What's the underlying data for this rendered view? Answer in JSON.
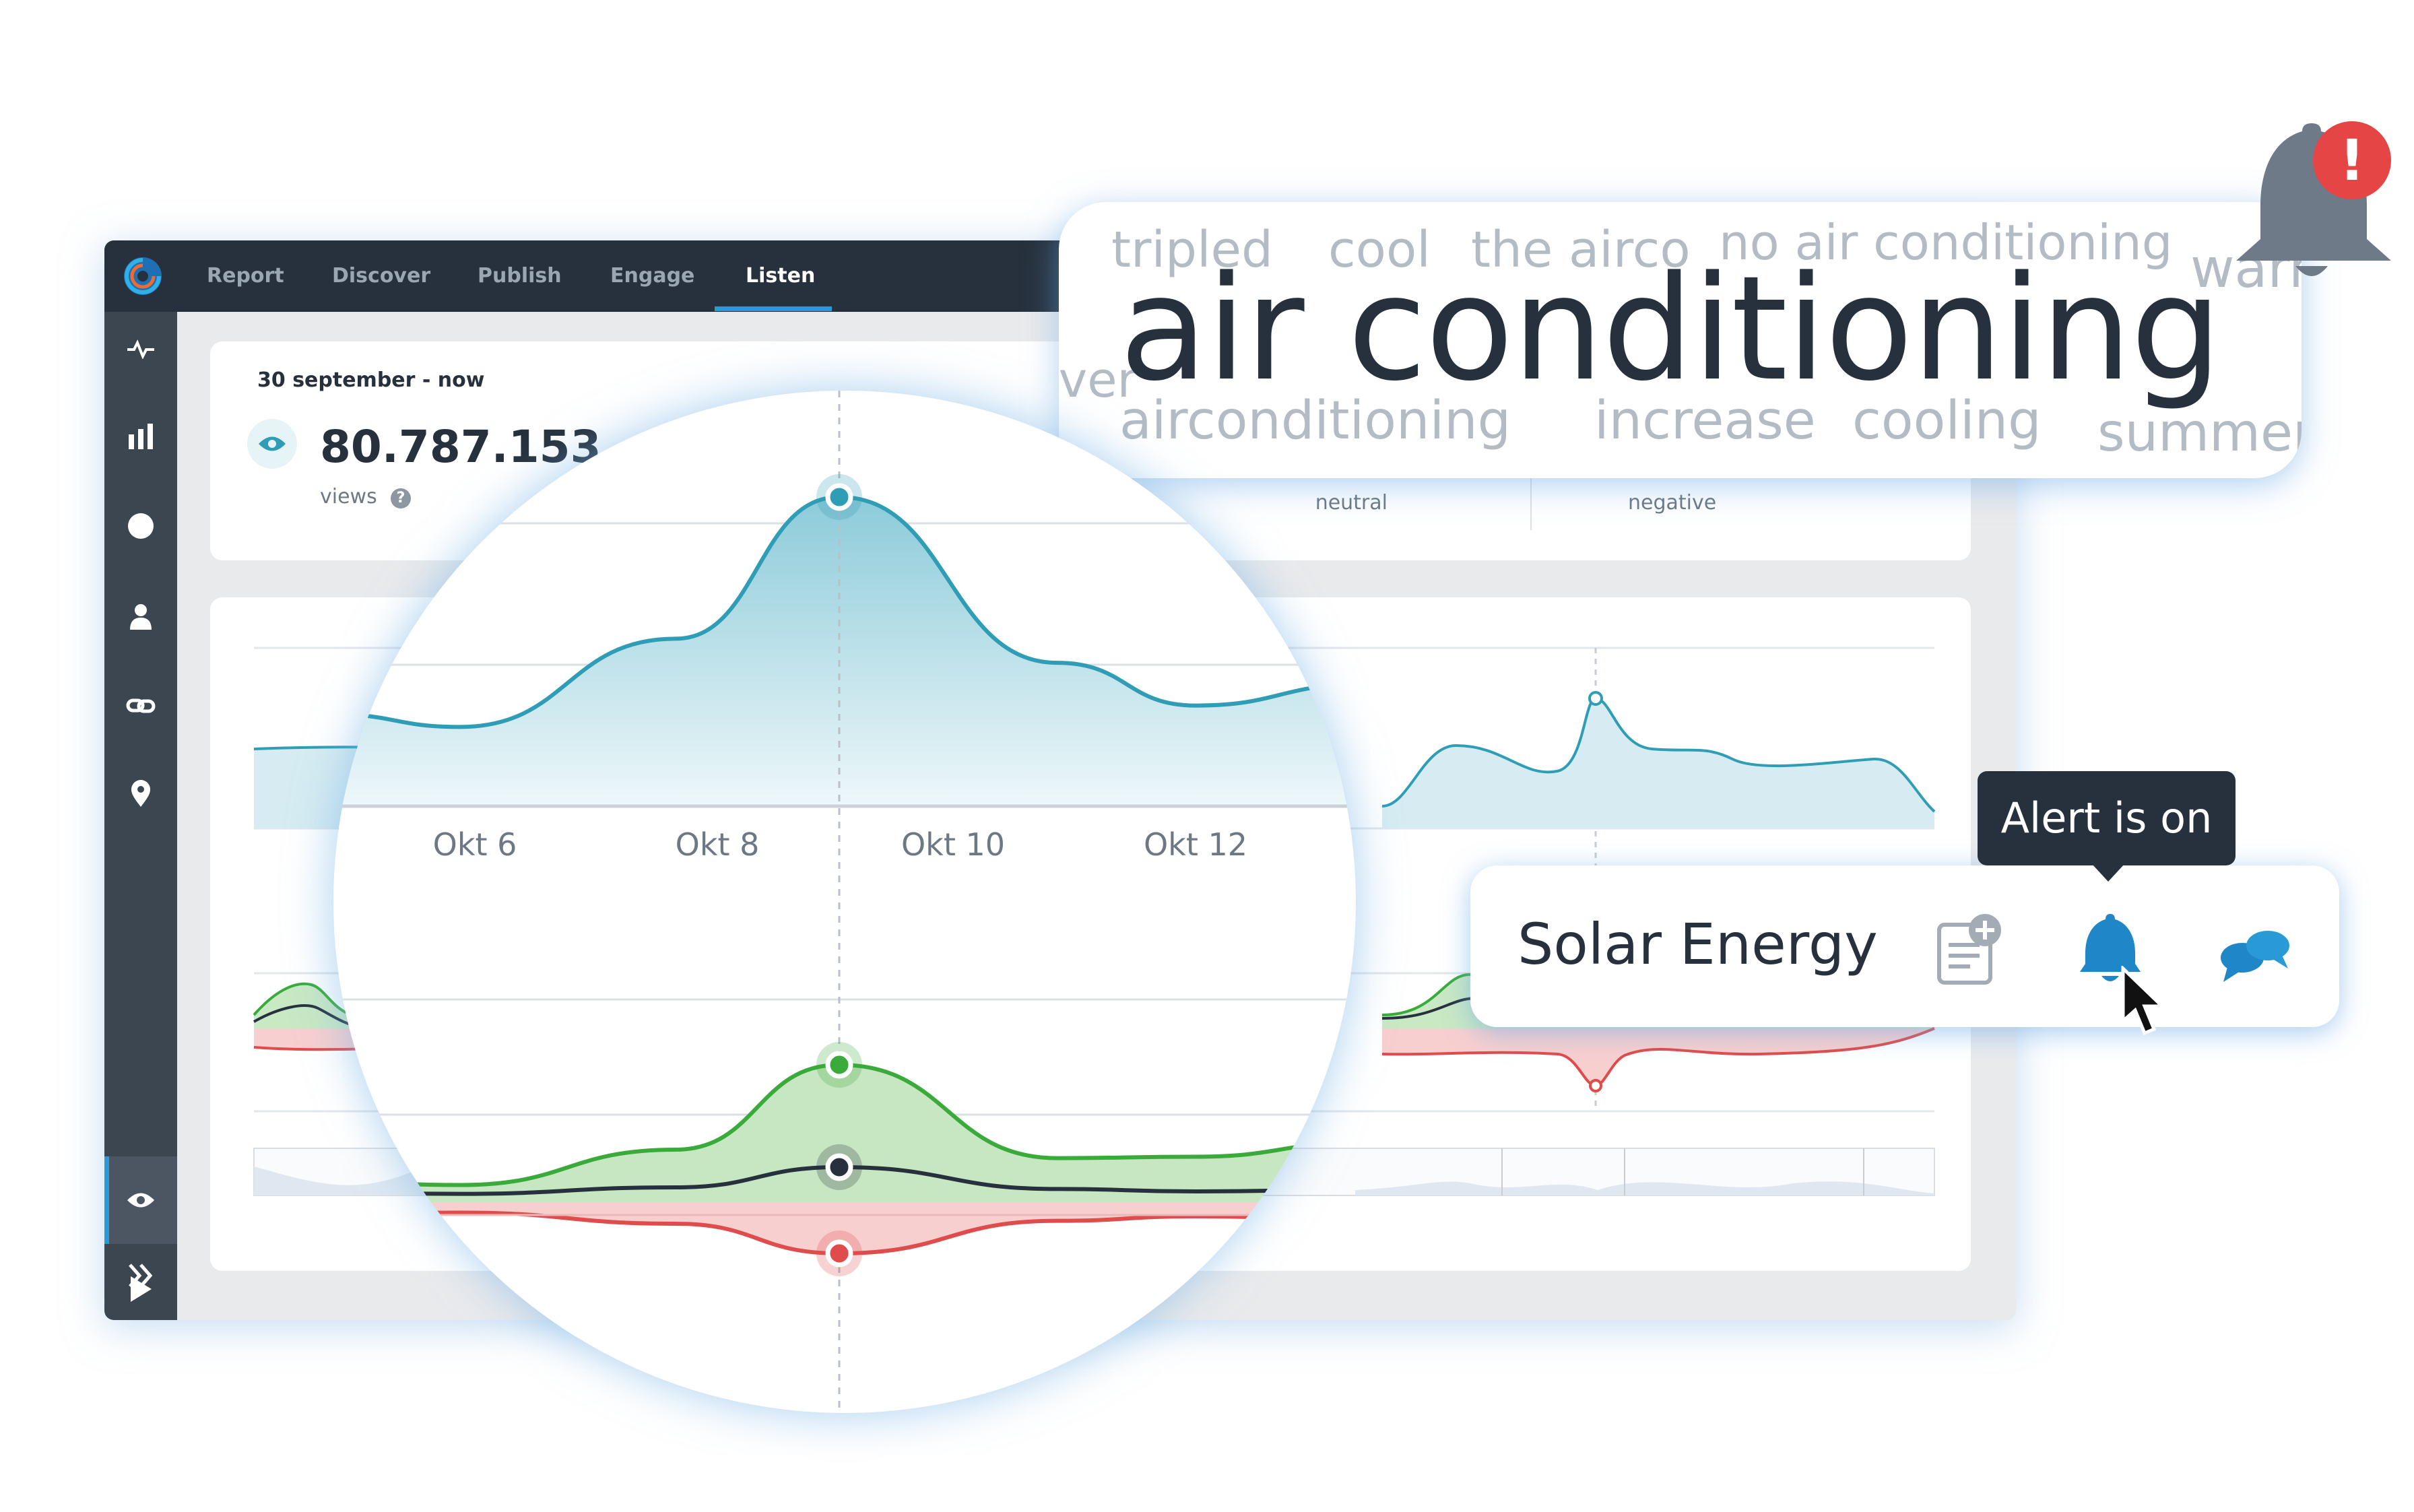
{
  "nav": {
    "tabs": [
      {
        "label": "Report"
      },
      {
        "label": "Discover"
      },
      {
        "label": "Publish"
      },
      {
        "label": "Engage"
      },
      {
        "label": "Listen"
      }
    ],
    "active_tab": "Listen"
  },
  "summary": {
    "date_range": "30 september - now",
    "views_value": "80.787.153",
    "views_label": "views",
    "sentiment_neutral_label": "neutral",
    "sentiment_negative_label": "negative"
  },
  "word_cloud": {
    "main_term": "air conditioning",
    "terms": [
      "tripled",
      "cool",
      "the airco",
      "no air conditioning",
      "warm",
      "fever",
      "airconditioning",
      "increase",
      "cooling",
      "summer"
    ]
  },
  "magnifier": {
    "x_ticks": [
      "Okt 6",
      "Okt 8",
      "Okt 10",
      "Okt 12"
    ]
  },
  "topic_card": {
    "title": "Solar Energy",
    "tooltip": "Alert is on",
    "icons": [
      "add-note-icon",
      "bell-icon",
      "chat-bubbles-icon"
    ]
  },
  "alert": {
    "icon": "bell-alert-icon",
    "badge": "!"
  },
  "colors": {
    "teal": "#2f9db5",
    "green": "#3aab3a",
    "red": "#e04b4b",
    "dark": "#26313d",
    "accent_blue": "#2a9ad6",
    "sidebar": "#3b4651"
  },
  "chart_data": [
    {
      "type": "area",
      "title": "",
      "x": [
        "Okt 6",
        "Okt 8",
        "Okt 10",
        "Okt 12"
      ],
      "series": [
        {
          "values": [
            0.12,
            0.45,
            0.98,
            0.2
          ]
        }
      ]
    },
    {
      "type": "area",
      "title": "",
      "x": [
        "Okt 6",
        "Okt 8",
        "Okt 10",
        "Okt 12"
      ],
      "series": [
        {
          "values": [
            0.05,
            0.3,
            0.9,
            0.25
          ]
        },
        {
          "values": [
            0.02,
            0.1,
            0.35,
            0.05
          ]
        },
        {
          "values": [
            -0.05,
            -0.2,
            -0.6,
            -0.1
          ]
        }
      ]
    }
  ]
}
